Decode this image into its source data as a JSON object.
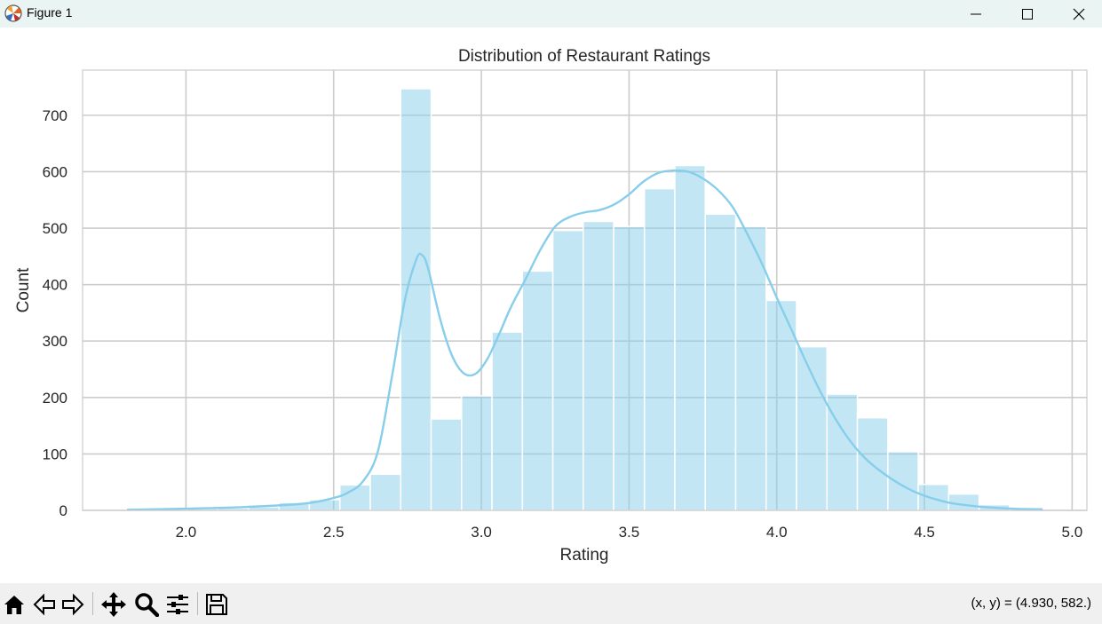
{
  "window": {
    "title": "Figure 1",
    "app_icon": "matplotlib-icon",
    "controls": [
      "minimize-icon",
      "maximize-icon",
      "close-icon"
    ]
  },
  "toolbar": {
    "buttons": [
      "home-icon",
      "back-icon",
      "forward-icon",
      "pan-icon",
      "zoom-icon",
      "configure-subplots-icon",
      "save-icon"
    ],
    "coordinates": "(x, y) = (4.930, 582.)"
  },
  "chart_data": {
    "type": "histogram",
    "title": "Distribution of Restaurant Ratings",
    "xlabel": "Rating",
    "ylabel": "Count",
    "xlim": [
      1.65,
      5.05
    ],
    "ylim": [
      0,
      780
    ],
    "xticks": [
      "2.0",
      "2.5",
      "3.0",
      "3.5",
      "4.0",
      "4.5",
      "5.0"
    ],
    "yticks": [
      "0",
      "100",
      "200",
      "300",
      "400",
      "500",
      "600",
      "700"
    ],
    "grid": true,
    "bar_color": "#87ceeb",
    "bar_opacity": 0.5,
    "line_color": "#87ceeb",
    "bins": [
      {
        "x0": 1.8,
        "x1": 1.903,
        "count": 2
      },
      {
        "x0": 1.903,
        "x1": 2.006,
        "count": 1
      },
      {
        "x0": 2.006,
        "x1": 2.109,
        "count": 3
      },
      {
        "x0": 2.109,
        "x1": 2.212,
        "count": 4
      },
      {
        "x0": 2.212,
        "x1": 2.315,
        "count": 6
      },
      {
        "x0": 2.315,
        "x1": 2.418,
        "count": 14
      },
      {
        "x0": 2.418,
        "x1": 2.521,
        "count": 19
      },
      {
        "x0": 2.521,
        "x1": 2.624,
        "count": 45
      },
      {
        "x0": 2.624,
        "x1": 2.727,
        "count": 64
      },
      {
        "x0": 2.727,
        "x1": 2.83,
        "count": 747
      },
      {
        "x0": 2.83,
        "x1": 2.933,
        "count": 162
      },
      {
        "x0": 2.933,
        "x1": 3.036,
        "count": 203
      },
      {
        "x0": 3.036,
        "x1": 3.139,
        "count": 316
      },
      {
        "x0": 3.139,
        "x1": 3.242,
        "count": 424
      },
      {
        "x0": 3.242,
        "x1": 3.345,
        "count": 496
      },
      {
        "x0": 3.345,
        "x1": 3.448,
        "count": 512
      },
      {
        "x0": 3.448,
        "x1": 3.552,
        "count": 503
      },
      {
        "x0": 3.552,
        "x1": 3.655,
        "count": 570
      },
      {
        "x0": 3.655,
        "x1": 3.758,
        "count": 611
      },
      {
        "x0": 3.758,
        "x1": 3.861,
        "count": 525
      },
      {
        "x0": 3.861,
        "x1": 3.964,
        "count": 503
      },
      {
        "x0": 3.964,
        "x1": 4.067,
        "count": 372
      },
      {
        "x0": 4.067,
        "x1": 4.17,
        "count": 290
      },
      {
        "x0": 4.17,
        "x1": 4.273,
        "count": 206
      },
      {
        "x0": 4.273,
        "x1": 4.376,
        "count": 164
      },
      {
        "x0": 4.376,
        "x1": 4.479,
        "count": 104
      },
      {
        "x0": 4.479,
        "x1": 4.582,
        "count": 46
      },
      {
        "x0": 4.582,
        "x1": 4.685,
        "count": 29
      },
      {
        "x0": 4.685,
        "x1": 4.788,
        "count": 10
      },
      {
        "x0": 4.788,
        "x1": 4.891,
        "count": 4
      }
    ],
    "kde": {
      "x": [
        1.8,
        2.0,
        2.2,
        2.4,
        2.5,
        2.55,
        2.6,
        2.65,
        2.7,
        2.74,
        2.78,
        2.8,
        2.82,
        2.86,
        2.9,
        2.94,
        2.98,
        3.02,
        3.06,
        3.1,
        3.15,
        3.2,
        3.25,
        3.3,
        3.35,
        3.4,
        3.45,
        3.5,
        3.55,
        3.6,
        3.65,
        3.7,
        3.75,
        3.8,
        3.85,
        3.9,
        3.95,
        4.0,
        4.05,
        4.1,
        4.15,
        4.2,
        4.25,
        4.3,
        4.35,
        4.4,
        4.45,
        4.5,
        4.55,
        4.6,
        4.7,
        4.8,
        4.9
      ],
      "y": [
        1,
        3,
        6,
        12,
        22,
        32,
        52,
        105,
        245,
        370,
        445,
        452,
        428,
        340,
        275,
        243,
        242,
        268,
        312,
        360,
        410,
        462,
        503,
        520,
        528,
        532,
        542,
        560,
        583,
        598,
        602,
        600,
        588,
        568,
        538,
        490,
        437,
        377,
        320,
        262,
        208,
        161,
        122,
        92,
        70,
        52,
        37,
        26,
        18,
        12,
        6,
        3,
        2
      ]
    }
  }
}
